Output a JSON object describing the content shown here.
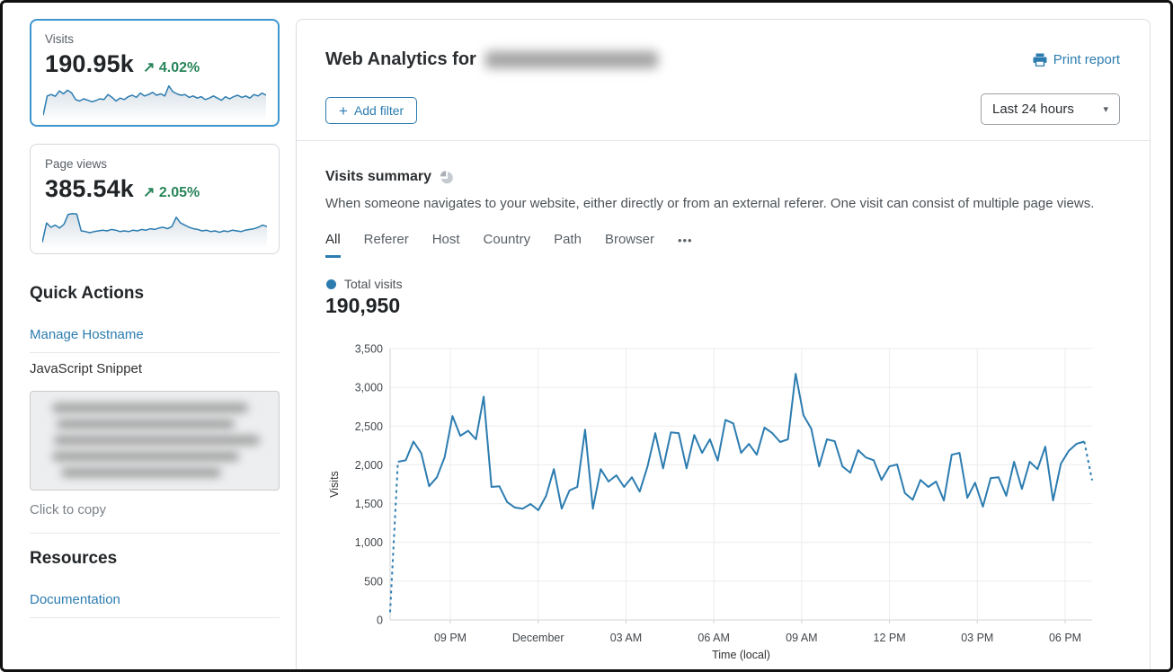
{
  "colors": {
    "accent_blue": "#2c7cb0",
    "chart_blue": "#2c7cb0",
    "positive_green": "#28855a",
    "grid_gray": "#ececec",
    "axis_gray": "#cfd3d7"
  },
  "icons": {
    "trend_up_arrow": "↗",
    "plus": "+",
    "caret_down": "▾",
    "ellipsis": "•••"
  },
  "sidebar": {
    "metric_cards": [
      {
        "label": "Visits",
        "value": "190.95k",
        "delta": "4.02%",
        "selected": true
      },
      {
        "label": "Page views",
        "value": "385.54k",
        "delta": "2.05%",
        "selected": false
      }
    ],
    "quick_actions": {
      "title": "Quick Actions",
      "manage_hostname_label": "Manage Hostname",
      "snippet_label": "JavaScript Snippet",
      "click_to_copy_label": "Click to copy"
    },
    "resources": {
      "title": "Resources",
      "documentation_label": "Documentation"
    }
  },
  "header": {
    "title_prefix": "Web Analytics for",
    "print_report_label": "Print report",
    "add_filter_label": "Add filter",
    "time_range_value": "Last 24 hours"
  },
  "summary": {
    "title": "Visits summary",
    "description": "When someone navigates to your website, either directly or from an external referer. One visit can consist of multiple page views.",
    "tabs": [
      "All",
      "Referer",
      "Host",
      "Country",
      "Path",
      "Browser"
    ],
    "active_tab": "All",
    "legend_label": "Total visits",
    "total_value": "190,950"
  },
  "chart_data": [
    {
      "type": "line",
      "title": "Total visits over last 24 hours",
      "xlabel": "Time (local)",
      "ylabel": "Visits",
      "ylim": [
        0,
        3500
      ],
      "yticks": [
        0,
        500,
        1000,
        1500,
        2000,
        2500,
        3000,
        3500
      ],
      "ytick_labels": [
        "0",
        "500",
        "1,000",
        "1,500",
        "2,000",
        "2,500",
        "3,000",
        "3,500"
      ],
      "xtick_labels": [
        "09 PM",
        "December",
        "03 AM",
        "06 AM",
        "09 AM",
        "12 PM",
        "03 PM",
        "06 PM"
      ],
      "grid": true,
      "legend_position": "top-left",
      "series": [
        {
          "name": "Total visits",
          "color": "#2c7cb0",
          "dashed_head_points": 1,
          "dashed_tail_points": 1,
          "values": [
            100,
            2040,
            2060,
            2300,
            2150,
            1725,
            1840,
            2100,
            2630,
            2375,
            2440,
            2330,
            2880,
            1715,
            1725,
            1520,
            1450,
            1435,
            1495,
            1415,
            1600,
            1945,
            1435,
            1670,
            1715,
            2455,
            1435,
            1945,
            1785,
            1865,
            1715,
            1840,
            1655,
            1980,
            2410,
            1955,
            2420,
            2410,
            1955,
            2385,
            2155,
            2330,
            2055,
            2580,
            2535,
            2155,
            2270,
            2130,
            2480,
            2410,
            2295,
            2330,
            3175,
            2640,
            2465,
            1980,
            2330,
            2305,
            1980,
            1900,
            2190,
            2095,
            2060,
            1805,
            1980,
            2005,
            1635,
            1550,
            1805,
            1715,
            1785,
            1540,
            2130,
            2155,
            1575,
            1770,
            1460,
            1830,
            1840,
            1600,
            2040,
            1690,
            2040,
            1945,
            2235,
            1540,
            2015,
            2180,
            2270,
            2300,
            1800
          ]
        }
      ]
    },
    {
      "type": "area",
      "title": "Visits sparkline (normalized %)",
      "values": [
        4,
        58,
        62,
        57,
        72,
        64,
        74,
        67,
        48,
        44,
        50,
        46,
        42,
        45,
        50,
        48,
        62,
        54,
        44,
        52,
        48,
        56,
        60,
        54,
        66,
        58,
        62,
        68,
        60,
        64,
        58,
        86,
        70,
        64,
        60,
        62,
        54,
        58,
        52,
        56,
        48,
        52,
        58,
        52,
        46,
        56,
        50,
        56,
        60,
        54,
        58,
        52,
        62,
        58,
        66,
        60
      ]
    },
    {
      "type": "area",
      "title": "Page views sparkline (normalized %)",
      "values": [
        8,
        62,
        50,
        56,
        48,
        58,
        86,
        88,
        87,
        40,
        38,
        35,
        38,
        40,
        42,
        40,
        44,
        42,
        38,
        40,
        38,
        42,
        40,
        44,
        42,
        46,
        44,
        48,
        50,
        46,
        52,
        78,
        62,
        56,
        50,
        46,
        44,
        40,
        42,
        38,
        40,
        36,
        40,
        38,
        42,
        40,
        38,
        42,
        44,
        46,
        50,
        56,
        52
      ]
    }
  ]
}
